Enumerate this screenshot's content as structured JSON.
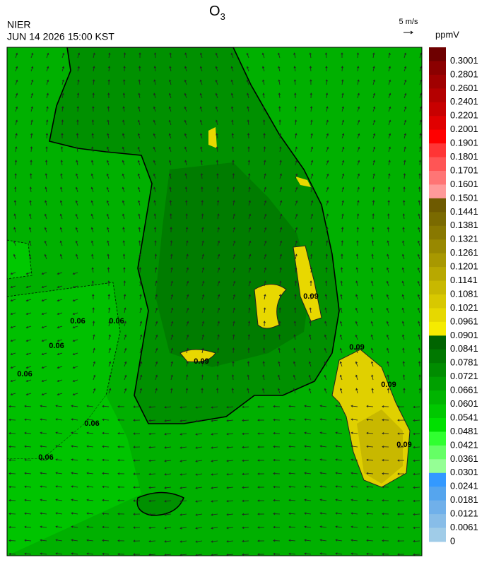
{
  "header": {
    "title": {
      "main": "O",
      "sub": "3"
    },
    "agency": "NIER",
    "datetime": "JUN 14 2026 15:00 KST",
    "wind_scale": "5 m/s"
  },
  "legend": {
    "unit": "ppmV",
    "items": [
      {
        "label": "0.3001",
        "color": "#6e0000"
      },
      {
        "label": "0.2801",
        "color": "#8b0000"
      },
      {
        "label": "0.2601",
        "color": "#a00000"
      },
      {
        "label": "0.2401",
        "color": "#b40000"
      },
      {
        "label": "0.2201",
        "color": "#c80000"
      },
      {
        "label": "0.2001",
        "color": "#e00000"
      },
      {
        "label": "0.1901",
        "color": "#ff0000"
      },
      {
        "label": "0.1801",
        "color": "#ff3535"
      },
      {
        "label": "0.1701",
        "color": "#ff5555"
      },
      {
        "label": "0.1601",
        "color": "#ff7575"
      },
      {
        "label": "0.1501",
        "color": "#ff9a9a"
      },
      {
        "label": "0.1441",
        "color": "#6e5a00"
      },
      {
        "label": "0.1381",
        "color": "#7a6a00"
      },
      {
        "label": "0.1321",
        "color": "#887800"
      },
      {
        "label": "0.1261",
        "color": "#988800"
      },
      {
        "label": "0.1201",
        "color": "#a89800"
      },
      {
        "label": "0.1141",
        "color": "#b8a800"
      },
      {
        "label": "0.1081",
        "color": "#c8b800"
      },
      {
        "label": "0.1021",
        "color": "#d8c800"
      },
      {
        "label": "0.0961",
        "color": "#e6d800"
      },
      {
        "label": "0.0901",
        "color": "#f5eb00"
      },
      {
        "label": "0.0841",
        "color": "#006400"
      },
      {
        "label": "0.0781",
        "color": "#007800"
      },
      {
        "label": "0.0721",
        "color": "#008c00"
      },
      {
        "label": "0.0661",
        "color": "#00a000"
      },
      {
        "label": "0.0601",
        "color": "#00b400"
      },
      {
        "label": "0.0541",
        "color": "#00c800"
      },
      {
        "label": "0.0481",
        "color": "#00e000"
      },
      {
        "label": "0.0421",
        "color": "#30ff30"
      },
      {
        "label": "0.0361",
        "color": "#65ff65"
      },
      {
        "label": "0.0301",
        "color": "#95ff95"
      },
      {
        "label": "0.0241",
        "color": "#3399ff"
      },
      {
        "label": "0.0181",
        "color": "#55a5ee"
      },
      {
        "label": "0.0121",
        "color": "#70b0ea"
      },
      {
        "label": "0.0061",
        "color": "#88bde8"
      },
      {
        "label": "0",
        "color": "#a0cce8"
      }
    ]
  },
  "contour_labels": [
    "0.06",
    "0.06",
    "0.06",
    "0.06",
    "0.06",
    "0.06",
    "0.09",
    "0.09",
    "0.09",
    "0.09",
    "0.09"
  ]
}
